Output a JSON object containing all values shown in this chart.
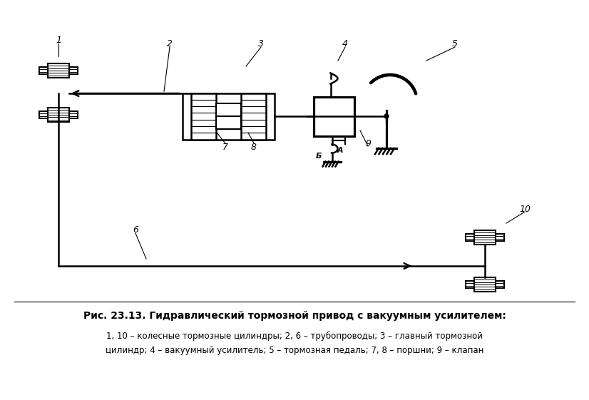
{
  "title": "Рис. 23.13. Гидравлический тормозной привод с вакуумным усилителем:",
  "caption_line1": "1, 10 – колесные тормозные цилиндры; 2, 6 – трубопроводы; 3 – главный тормозной",
  "caption_line2": "цилиндр; 4 – вакуумный усилитель; 5 – тормозная педаль; 7, 8 – поршни; 9 – клапан",
  "bg_color": "#ffffff",
  "line_color": "#000000",
  "figsize": [
    8.26,
    5.61
  ],
  "dpi": 100
}
